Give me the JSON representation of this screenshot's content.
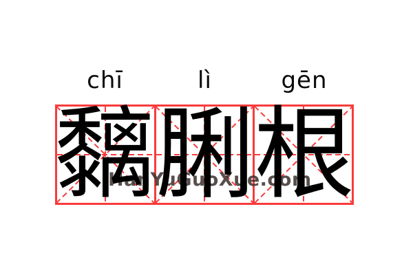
{
  "word": {
    "text": "黐脷根",
    "syllables": [
      {
        "pinyin": "chī",
        "hanzi": "黐"
      },
      {
        "pinyin": "lì",
        "hanzi": "脷"
      },
      {
        "pinyin": "gēn",
        "hanzi": "根"
      }
    ]
  },
  "watermark": "HanYuGuoXue.com",
  "grid": {
    "type": "mi-zi-ge",
    "cells": 3,
    "line_style": "solid border with dashed center cross and diagonals"
  },
  "colors": {
    "grid_red": "#f93b3b",
    "character_ink": "#000000",
    "pinyin_ink": "#0b0b0b",
    "watermark": "#3c312e",
    "background": "#ffffff"
  }
}
